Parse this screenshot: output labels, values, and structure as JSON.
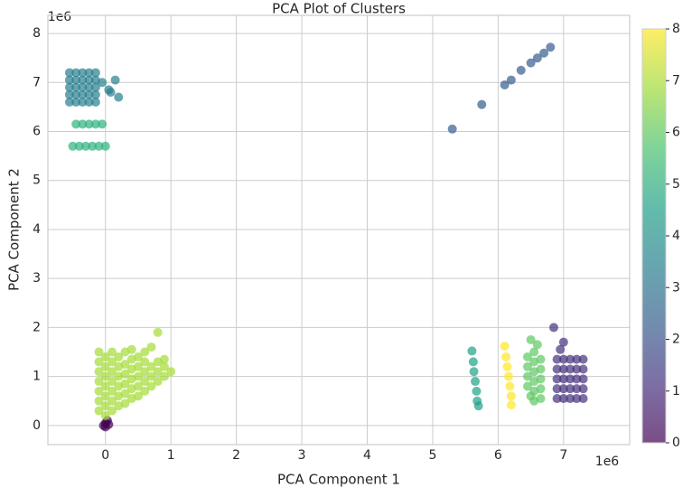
{
  "chart_data": {
    "type": "scatter",
    "title": "PCA Plot of Clusters",
    "x_label": "PCA Component 1",
    "y_label": "PCA Component 2",
    "x_offset_label": "1e6",
    "y_offset_label": "1e6",
    "xlim": [
      -0.88,
      8.01
    ],
    "ylim": [
      -0.39,
      8.37
    ],
    "xticks": [
      0,
      1,
      2,
      3,
      4,
      5,
      6,
      7
    ],
    "yticks": [
      0,
      1,
      2,
      3,
      4,
      5,
      6,
      7,
      8
    ],
    "grid": true,
    "alpha": 0.7,
    "colorbar": {
      "lim": [
        0,
        8
      ],
      "ticks": [
        0,
        1,
        2,
        3,
        4,
        5,
        6,
        7,
        8
      ],
      "colors": [
        "#440154",
        "#46327e",
        "#365c8d",
        "#277f8e",
        "#1fa187",
        "#4ac16d",
        "#a0da39",
        "#fde725"
      ]
    },
    "series": [
      {
        "color": "#440154",
        "x": [
          0,
          0.03,
          -0.03,
          0.05,
          0
        ],
        "y": [
          0.05,
          0.1,
          0,
          0.02,
          -0.03
        ]
      },
      {
        "color": "#46327e",
        "x": [
          6.9,
          6.9,
          6.9,
          6.9,
          6.9,
          7.0,
          7.0,
          7.0,
          7.0,
          7.0,
          7.1,
          7.1,
          7.1,
          7.1,
          7.1,
          7.2,
          7.2,
          7.2,
          7.2,
          7.2,
          7.3,
          7.3,
          7.3,
          7.3,
          7.3,
          6.85,
          7.0,
          6.95
        ],
        "y": [
          0.55,
          0.75,
          0.95,
          1.15,
          1.35,
          0.55,
          0.75,
          0.95,
          1.15,
          1.35,
          0.55,
          0.75,
          0.95,
          1.15,
          1.35,
          0.55,
          0.75,
          0.95,
          1.15,
          1.35,
          0.55,
          0.75,
          0.95,
          1.15,
          1.35,
          2.0,
          1.7,
          1.55
        ]
      },
      {
        "color": "#365c8d",
        "x": [
          5.3,
          5.75,
          6.1,
          6.2,
          6.35,
          6.5,
          6.6,
          6.7,
          6.8
        ],
        "y": [
          6.05,
          6.55,
          6.95,
          7.05,
          7.25,
          7.4,
          7.5,
          7.6,
          7.72
        ]
      },
      {
        "color": "#277f8e",
        "x": [
          -0.55,
          -0.55,
          -0.55,
          -0.55,
          -0.55,
          -0.45,
          -0.45,
          -0.45,
          -0.45,
          -0.45,
          -0.35,
          -0.35,
          -0.35,
          -0.35,
          -0.35,
          -0.25,
          -0.25,
          -0.25,
          -0.25,
          -0.25,
          -0.15,
          -0.15,
          -0.15,
          -0.15,
          -0.15,
          -0.05,
          0.05,
          0.15,
          0.2,
          0.08
        ],
        "y": [
          6.6,
          6.75,
          6.9,
          7.05,
          7.2,
          6.6,
          6.75,
          6.9,
          7.05,
          7.2,
          6.6,
          6.75,
          6.9,
          7.05,
          7.2,
          6.6,
          6.75,
          6.9,
          7.05,
          7.2,
          6.6,
          6.75,
          6.9,
          7.05,
          7.2,
          7.0,
          6.85,
          7.05,
          6.7,
          6.8
        ]
      },
      {
        "color": "#1fa187",
        "x": [
          5.6,
          5.62,
          5.63,
          5.65,
          5.67,
          5.68,
          5.7
        ],
        "y": [
          1.52,
          1.3,
          1.1,
          0.9,
          0.7,
          0.5,
          0.4
        ]
      },
      {
        "color": "#2db27d",
        "x": [
          -0.45,
          -0.35,
          -0.25,
          -0.15,
          -0.05,
          -0.5,
          -0.4,
          -0.3,
          -0.2,
          -0.1,
          0
        ],
        "y": [
          6.15,
          6.15,
          6.15,
          6.15,
          6.15,
          5.7,
          5.7,
          5.7,
          5.7,
          5.7,
          5.7
        ]
      },
      {
        "color": "#5ec962",
        "x": [
          6.5,
          6.45,
          6.45,
          6.45,
          6.45,
          6.5,
          6.55,
          6.55,
          6.55,
          6.55,
          6.55,
          6.55,
          6.65,
          6.65,
          6.65,
          6.65,
          6.65,
          6.6
        ],
        "y": [
          1.75,
          1.4,
          1.2,
          1.0,
          0.8,
          0.6,
          1.5,
          1.3,
          1.1,
          0.9,
          0.7,
          0.5,
          1.35,
          1.15,
          0.95,
          0.75,
          0.55,
          1.65
        ]
      },
      {
        "color": "#a5db36",
        "x": [
          -0.1,
          -0.1,
          -0.1,
          -0.1,
          -0.1,
          -0.1,
          -0.1,
          0,
          0,
          0,
          0,
          0,
          0,
          0,
          0.1,
          0.1,
          0.1,
          0.1,
          0.1,
          0.1,
          0.1,
          0.2,
          0.2,
          0.2,
          0.2,
          0.2,
          0.2,
          0.3,
          0.3,
          0.3,
          0.3,
          0.3,
          0.3,
          0.4,
          0.4,
          0.4,
          0.4,
          0.4,
          0.4,
          0.5,
          0.5,
          0.5,
          0.5,
          0.5,
          0.6,
          0.6,
          0.6,
          0.6,
          0.6,
          0.7,
          0.7,
          0.7,
          0.7,
          0.8,
          0.8,
          0.8,
          0.8,
          0.9,
          0.9,
          0.9,
          1.0
        ],
        "y": [
          0.3,
          0.5,
          0.7,
          0.9,
          1.1,
          1.3,
          1.5,
          0.2,
          0.4,
          0.6,
          0.8,
          1.0,
          1.2,
          1.4,
          0.3,
          0.5,
          0.7,
          0.9,
          1.1,
          1.3,
          1.5,
          0.4,
          0.6,
          0.8,
          1.0,
          1.2,
          1.4,
          0.45,
          0.65,
          0.85,
          1.05,
          1.25,
          1.5,
          0.55,
          0.75,
          0.95,
          1.15,
          1.35,
          1.55,
          0.6,
          0.8,
          1.0,
          1.2,
          1.4,
          0.7,
          0.9,
          1.1,
          1.3,
          1.5,
          0.8,
          1.0,
          1.2,
          1.6,
          0.9,
          1.1,
          1.3,
          1.9,
          1.0,
          1.2,
          1.35,
          1.1
        ]
      },
      {
        "color": "#fde725",
        "x": [
          6.1,
          6.12,
          6.14,
          6.16,
          6.18,
          6.2,
          6.2
        ],
        "y": [
          1.62,
          1.4,
          1.2,
          1.0,
          0.8,
          0.6,
          0.42
        ]
      }
    ]
  }
}
